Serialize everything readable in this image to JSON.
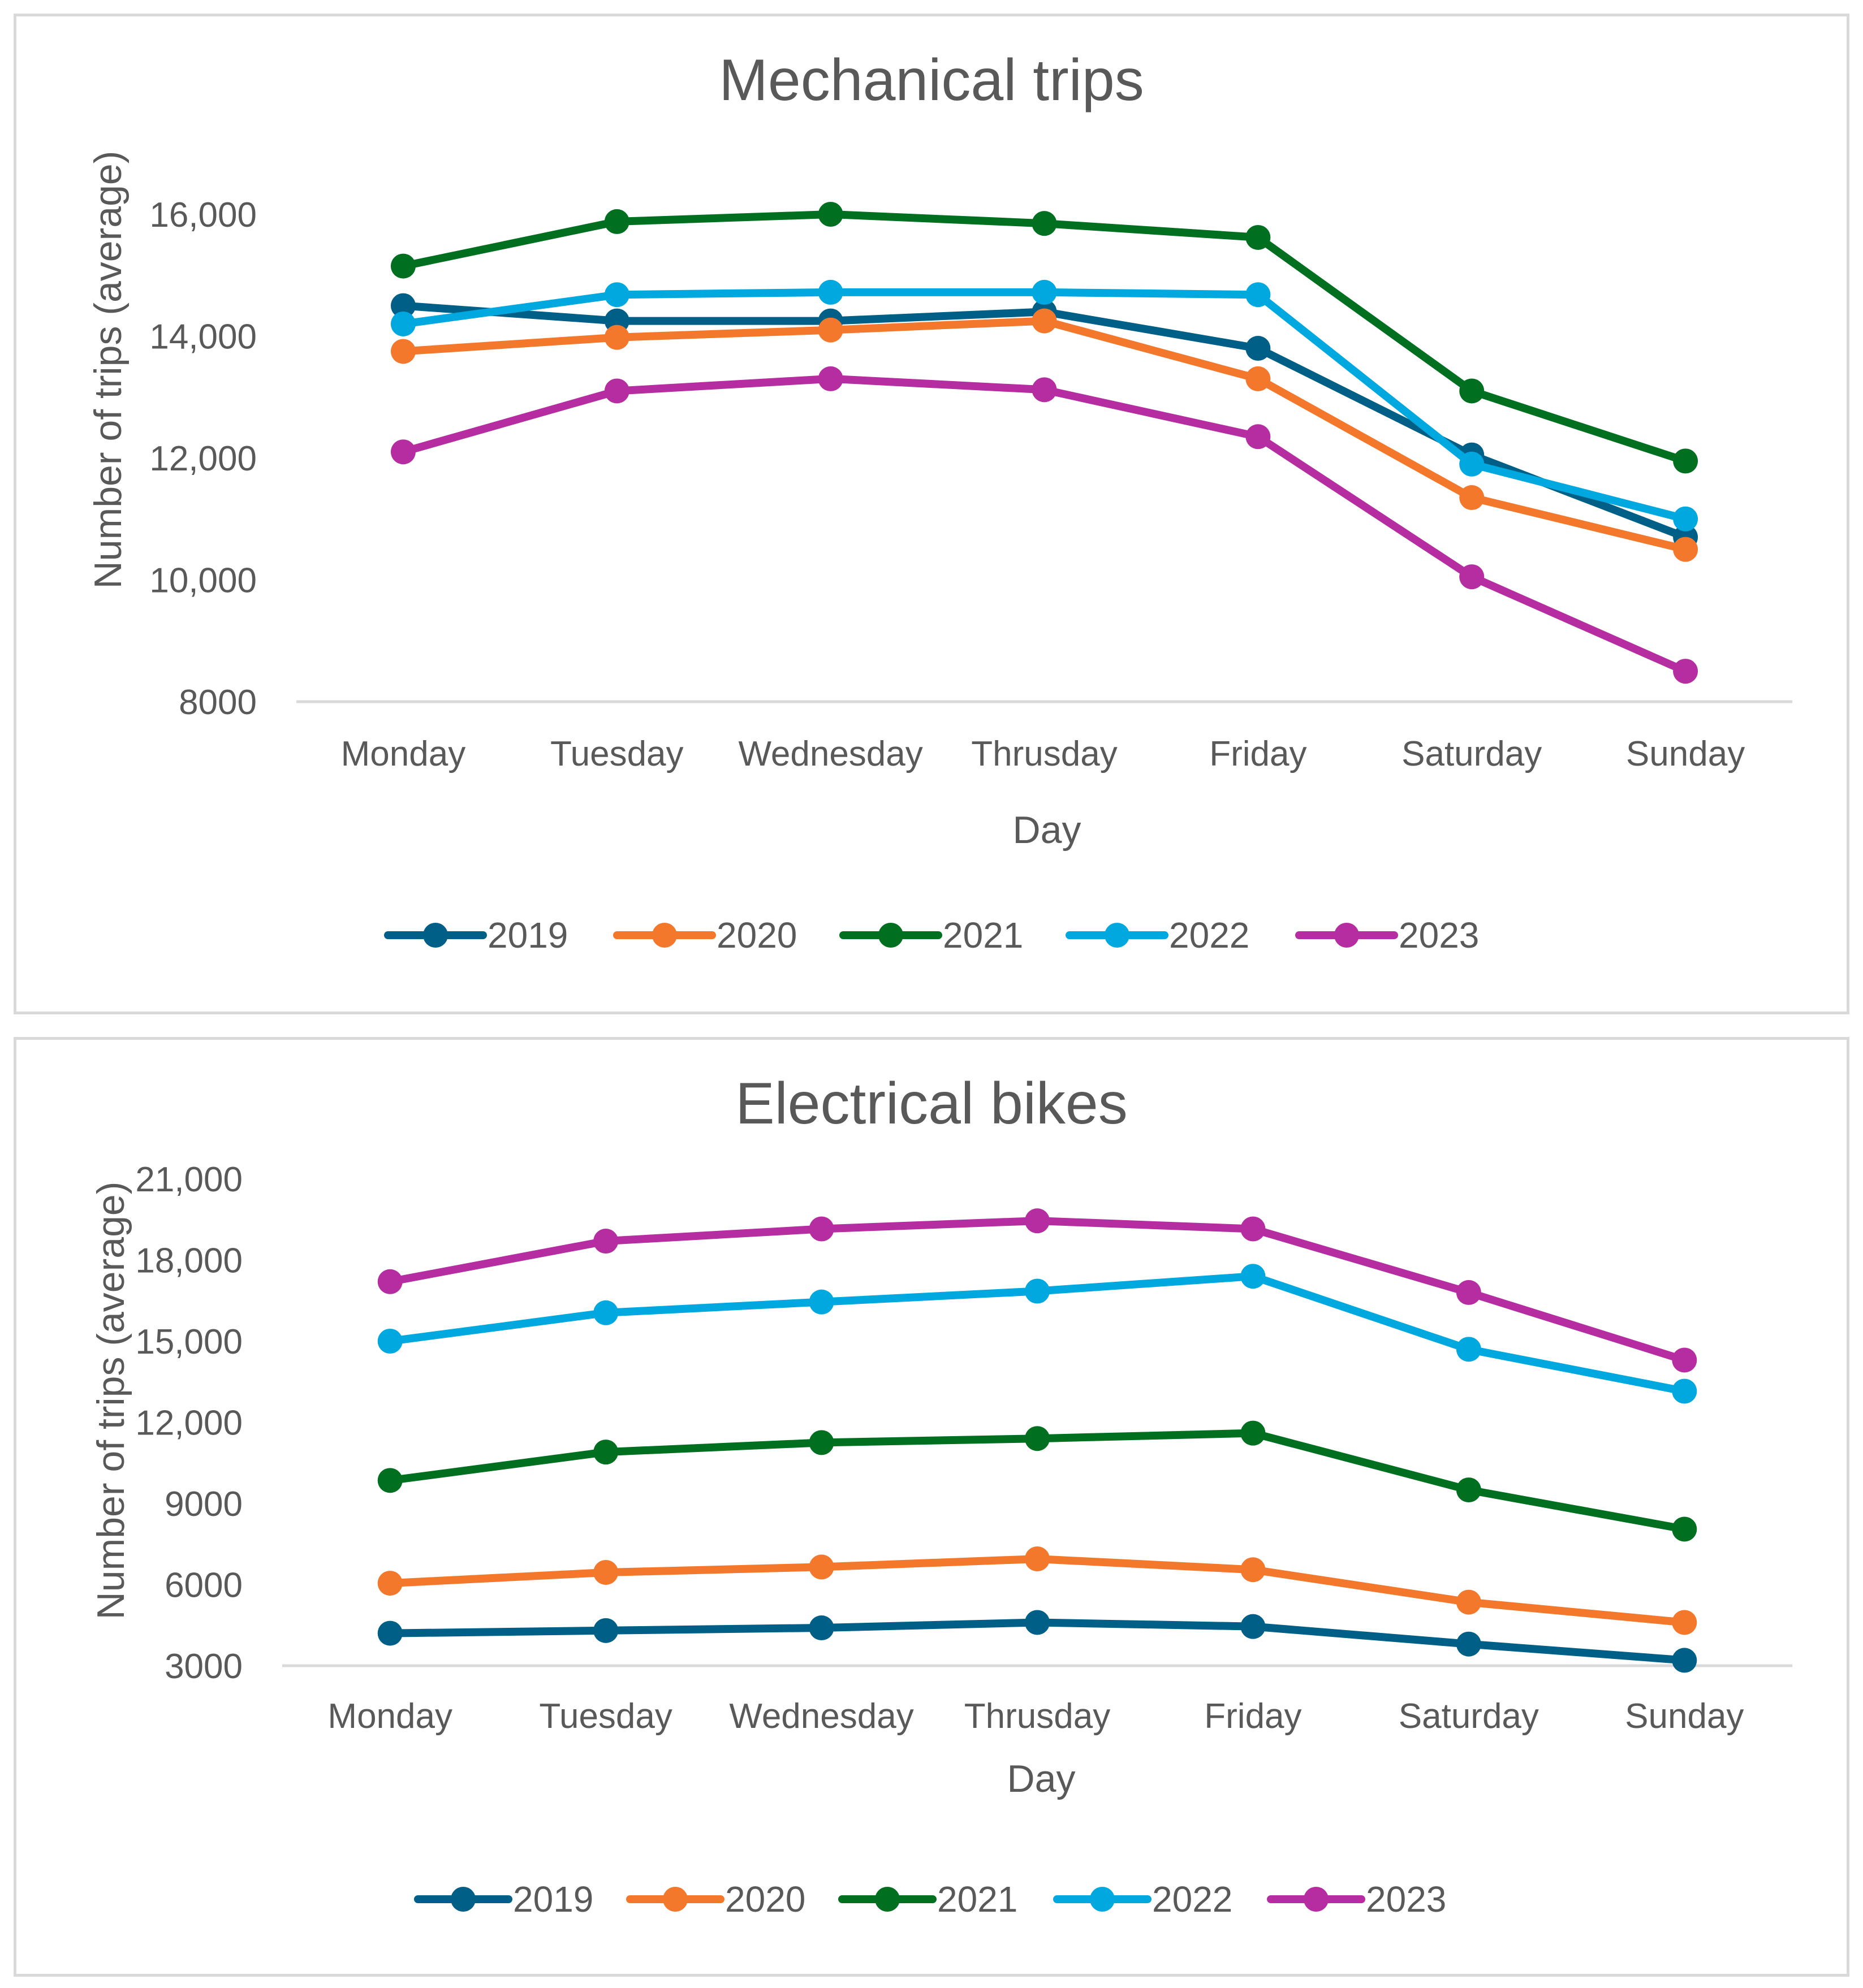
{
  "chart_data": [
    {
      "type": "line",
      "title": "Mechanical trips",
      "xlabel": "Day",
      "ylabel": "Number of trips (average)",
      "categories": [
        "Monday",
        "Tuesday",
        "Wednesday",
        "Thrusday",
        "Friday",
        "Saturday",
        "Sunday"
      ],
      "ylim": [
        8000,
        16000
      ],
      "yticks": [
        8000,
        10000,
        12000,
        14000,
        16000
      ],
      "ytick_labels": [
        "8000",
        "10,000",
        "12,000",
        "14,000",
        "16,000"
      ],
      "grid": false,
      "legend": "bottom",
      "series": [
        {
          "name": "2019",
          "color": "#005f86",
          "values": [
            14500,
            14250,
            14250,
            14400,
            13800,
            12050,
            10700
          ]
        },
        {
          "name": "2020",
          "color": "#f4782c",
          "values": [
            13750,
            13980,
            14100,
            14250,
            13300,
            11350,
            10500
          ]
        },
        {
          "name": "2021",
          "color": "#007020",
          "values": [
            15150,
            15880,
            16000,
            15850,
            15620,
            13100,
            11950
          ]
        },
        {
          "name": "2022",
          "color": "#00a8e0",
          "values": [
            14200,
            14680,
            14720,
            14720,
            14680,
            11900,
            11000
          ]
        },
        {
          "name": "2023",
          "color": "#b52da0",
          "values": [
            12100,
            13100,
            13300,
            13120,
            12350,
            10050,
            8500
          ]
        }
      ]
    },
    {
      "type": "line",
      "title": "Electrical bikes",
      "xlabel": "Day",
      "ylabel": "Number of trips (average)",
      "categories": [
        "Monday",
        "Tuesday",
        "Wednesday",
        "Thrusday",
        "Friday",
        "Saturday",
        "Sunday"
      ],
      "ylim": [
        3000,
        21000
      ],
      "yticks": [
        3000,
        6000,
        9000,
        12000,
        15000,
        18000,
        21000
      ],
      "ytick_labels": [
        "3000",
        "6000",
        "9000",
        "12,000",
        "15,000",
        "18,000",
        "21,000"
      ],
      "grid": false,
      "legend": "bottom",
      "series": [
        {
          "name": "2019",
          "color": "#005f86",
          "values": [
            4200,
            4300,
            4400,
            4600,
            4450,
            3800,
            3200
          ]
        },
        {
          "name": "2020",
          "color": "#f4782c",
          "values": [
            6050,
            6450,
            6650,
            6950,
            6550,
            5350,
            4600
          ]
        },
        {
          "name": "2021",
          "color": "#007020",
          "values": [
            9850,
            10900,
            11250,
            11400,
            11600,
            9500,
            8050
          ]
        },
        {
          "name": "2022",
          "color": "#00a8e0",
          "values": [
            15000,
            16050,
            16450,
            16850,
            17400,
            14700,
            13150
          ]
        },
        {
          "name": "2023",
          "color": "#b52da0",
          "values": [
            17200,
            18700,
            19150,
            19450,
            19150,
            16800,
            14300
          ]
        }
      ]
    }
  ]
}
